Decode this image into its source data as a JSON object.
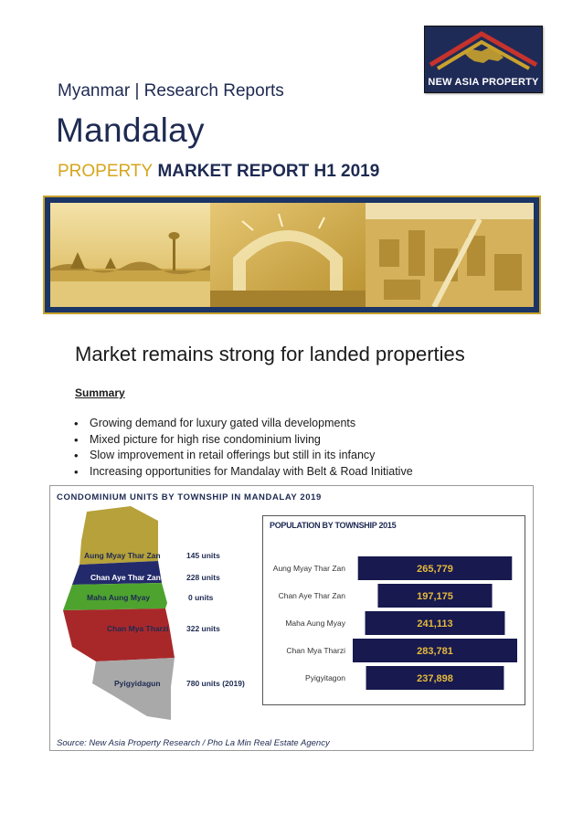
{
  "logo": {
    "text": "NEW ASIA PROPERTY"
  },
  "header": {
    "section": "Myanmar | Research Reports",
    "city": "Mandalay",
    "report_accent": "PROPERTY",
    "report_rest": "MARKET REPORT H1 2019"
  },
  "body": {
    "headline": "Market remains strong for landed properties",
    "summary_heading": "Summary",
    "bullets": [
      "Growing demand for luxury gated villa developments",
      "Mixed picture for high rise condominium living",
      "Slow improvement in retail offerings but still in its infancy",
      "Increasing opportunities for Mandalay with Belt & Road Initiative"
    ]
  },
  "condo": {
    "title": "CONDOMINIUM UNITS BY TOWNSHIP IN MANDALAY 2019",
    "source": "Source: New Asia Property Research /  Pho La Min Real Estate Agency",
    "townships": [
      {
        "name": "Aung Myay Thar Zan",
        "units": "145 units",
        "color": "#b6a13a",
        "text_color": "#1e2a52"
      },
      {
        "name": "Chan Aye Thar Zan",
        "units": "228 units",
        "color": "#232a6b",
        "text_color": "#ffffff"
      },
      {
        "name": "Maha Aung Myay",
        "units": "0 units",
        "color": "#4ea32f",
        "text_color": "#1e2a52"
      },
      {
        "name": "Chan Mya Tharzi",
        "units": "322 units",
        "color": "#a8282a",
        "text_color": "#1e2a52"
      },
      {
        "name": "Pyigyidagun",
        "units": "780 units (2019)",
        "color": "#a9a9a9",
        "text_color": "#1e2a52"
      }
    ]
  },
  "chart_data": {
    "type": "bar",
    "title": "POPULATION BY TOWNSHIP 2015",
    "orientation": "horizontal",
    "categories": [
      "Aung Myay Thar Zan",
      "Chan Aye Thar Zan",
      "Maha Aung Myay",
      "Chan Mya Tharzi",
      "Pyigyitagon"
    ],
    "values": [
      265779,
      197175,
      241113,
      283781,
      237898
    ],
    "value_labels": [
      "265,779",
      "197,175",
      "241,113",
      "283,781",
      "237,898"
    ],
    "bar_color": "#17194f",
    "label_color": "#e5b93d",
    "grid": false,
    "legend": "none"
  }
}
